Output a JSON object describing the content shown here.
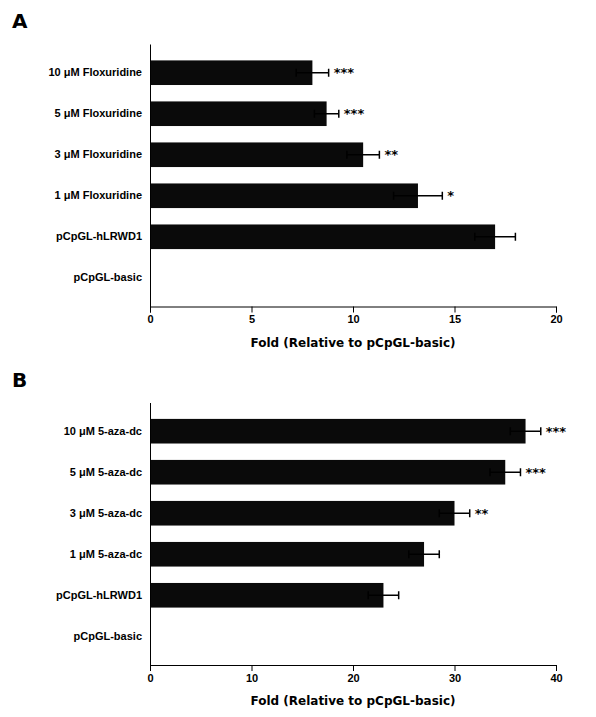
{
  "chart_data": [
    {
      "type": "bar",
      "orientation": "horizontal",
      "title": "A",
      "categories": [
        "pCpGL-basic",
        "pCpGL-hLRWD1",
        "1 μM Floxuridine",
        "3 μM Floxuridine",
        "5 μM Floxuridine",
        "10 μM Floxuridine"
      ],
      "values": [
        0.0,
        17.0,
        13.2,
        10.5,
        8.7,
        8.0
      ],
      "errors": [
        0.0,
        1.0,
        1.2,
        0.8,
        0.6,
        0.8
      ],
      "annotations": [
        null,
        null,
        "*",
        "**",
        "***",
        "***"
      ],
      "color": "#0a0a0a",
      "xlim": [
        0,
        20
      ],
      "xticks": [
        0,
        5,
        10,
        15,
        20
      ],
      "xlabel": "Fold (Relative to pCpGL-basic)",
      "grid": false
    },
    {
      "type": "bar",
      "orientation": "horizontal",
      "title": "B",
      "categories": [
        "pCpGL-basic",
        "pCpGL-hLRWD1",
        "1 μM 5-aza-dc",
        "3 μM 5-aza-dc",
        "5 μM 5-aza-dc",
        "10 μM 5-aza-dc"
      ],
      "values": [
        0.0,
        23.0,
        27.0,
        30.0,
        35.0,
        37.0
      ],
      "errors": [
        0.0,
        1.5,
        1.5,
        1.5,
        1.5,
        1.5
      ],
      "annotations": [
        null,
        null,
        null,
        "**",
        "***",
        "***"
      ],
      "color": "#0a0a0a",
      "xlim": [
        0,
        40
      ],
      "xticks": [
        0,
        10,
        20,
        30,
        40
      ],
      "xlabel": "Fold (Relative to pCpGL-basic)",
      "grid": false
    }
  ]
}
